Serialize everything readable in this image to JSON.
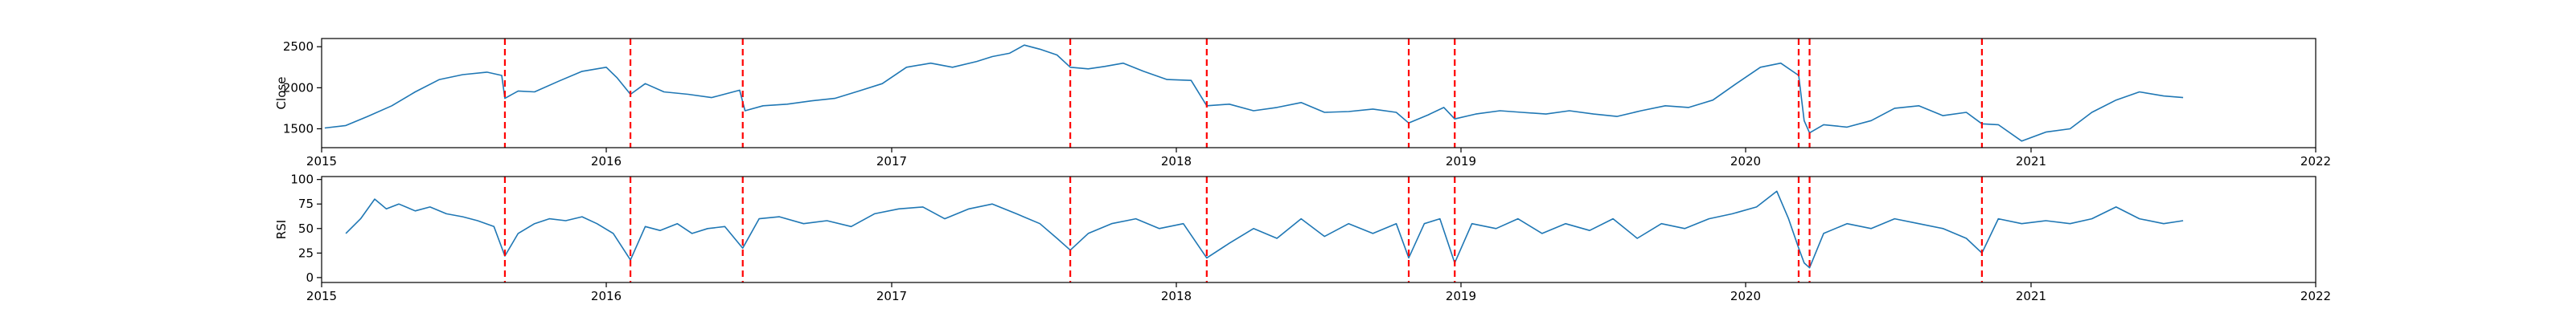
{
  "chart_data": [
    {
      "type": "line",
      "ylabel": "Close",
      "xlim": [
        "2015-01-01",
        "2022-01-01"
      ],
      "ylim": [
        1270,
        2600
      ],
      "xticks": [
        "2015",
        "2016",
        "2017",
        "2018",
        "2019",
        "2020",
        "2021",
        "2022"
      ],
      "yticks": [
        1500,
        2000,
        2500
      ],
      "series_color": "#1f77b4",
      "event_color": "#ff0000",
      "event_dates": [
        "2015-08-24",
        "2016-02-01",
        "2016-06-24",
        "2017-08-18",
        "2018-02-09",
        "2018-10-26",
        "2018-12-24",
        "2020-03-09",
        "2020-03-23",
        "2020-10-30"
      ],
      "series": [
        {
          "x": [
            "2015-01-05",
            "2015-02-01",
            "2015-03-01",
            "2015-04-01",
            "2015-05-01",
            "2015-06-01",
            "2015-07-01",
            "2015-08-01",
            "2015-08-20",
            "2015-08-24",
            "2015-09-10",
            "2015-10-01",
            "2015-11-01",
            "2015-12-01",
            "2016-01-01",
            "2016-01-15",
            "2016-02-01",
            "2016-02-20",
            "2016-03-15",
            "2016-04-15",
            "2016-05-15",
            "2016-06-20",
            "2016-06-27",
            "2016-07-20",
            "2016-08-20",
            "2016-09-20",
            "2016-10-20",
            "2016-11-20",
            "2016-12-20",
            "2017-01-20",
            "2017-02-20",
            "2017-03-20",
            "2017-04-20",
            "2017-05-10",
            "2017-06-01",
            "2017-06-20",
            "2017-07-10",
            "2017-08-01",
            "2017-08-18",
            "2017-09-10",
            "2017-10-01",
            "2017-10-25",
            "2017-11-20",
            "2017-12-20",
            "2018-01-20",
            "2018-02-09",
            "2018-03-10",
            "2018-04-10",
            "2018-05-10",
            "2018-06-10",
            "2018-07-10",
            "2018-08-10",
            "2018-09-10",
            "2018-10-10",
            "2018-10-26",
            "2018-11-20",
            "2018-12-10",
            "2018-12-24",
            "2019-01-20",
            "2019-02-20",
            "2019-03-20",
            "2019-04-20",
            "2019-05-20",
            "2019-06-20",
            "2019-07-20",
            "2019-08-20",
            "2019-09-20",
            "2019-10-20",
            "2019-11-20",
            "2019-12-20",
            "2020-01-20",
            "2020-02-15",
            "2020-03-09",
            "2020-03-16",
            "2020-03-23",
            "2020-04-10",
            "2020-05-10",
            "2020-06-10",
            "2020-07-10",
            "2020-08-10",
            "2020-09-10",
            "2020-10-10",
            "2020-10-30",
            "2020-11-20",
            "2020-12-20",
            "2021-01-20",
            "2021-02-20",
            "2021-03-20",
            "2021-04-20",
            "2021-05-20",
            "2021-06-20",
            "2021-07-15"
          ],
          "values": [
            1510,
            1540,
            1650,
            1780,
            1950,
            2100,
            2160,
            2190,
            2150,
            1870,
            1960,
            1950,
            2080,
            2200,
            2250,
            2120,
            1920,
            2050,
            1950,
            1920,
            1880,
            1970,
            1720,
            1780,
            1800,
            1840,
            1870,
            1960,
            2050,
            2250,
            2300,
            2250,
            2320,
            2380,
            2420,
            2520,
            2470,
            2400,
            2250,
            2230,
            2260,
            2300,
            2200,
            2100,
            2090,
            1780,
            1800,
            1720,
            1760,
            1820,
            1700,
            1710,
            1740,
            1700,
            1570,
            1670,
            1760,
            1620,
            1680,
            1720,
            1700,
            1680,
            1720,
            1680,
            1650,
            1720,
            1780,
            1760,
            1850,
            2050,
            2250,
            2300,
            2150,
            1600,
            1450,
            1550,
            1520,
            1600,
            1750,
            1780,
            1660,
            1700,
            1560,
            1550,
            1350,
            1460,
            1500,
            1700,
            1850,
            1950,
            1900,
            1880
          ]
        }
      ]
    },
    {
      "type": "line",
      "ylabel": "RSI",
      "xlim": [
        "2015-01-01",
        "2022-01-01"
      ],
      "ylim": [
        -5,
        103
      ],
      "xticks": [
        "2015",
        "2016",
        "2017",
        "2018",
        "2019",
        "2020",
        "2021",
        "2022"
      ],
      "yticks": [
        0,
        25,
        50,
        75,
        100
      ],
      "series_color": "#1f77b4",
      "event_color": "#ff0000",
      "event_dates": [
        "2015-08-24",
        "2016-02-01",
        "2016-06-24",
        "2017-08-18",
        "2018-02-09",
        "2018-10-26",
        "2018-12-24",
        "2020-03-09",
        "2020-03-23",
        "2020-10-30"
      ],
      "series": [
        {
          "x": [
            "2015-02-01",
            "2015-02-20",
            "2015-03-10",
            "2015-03-25",
            "2015-04-10",
            "2015-05-01",
            "2015-05-20",
            "2015-06-10",
            "2015-07-01",
            "2015-07-20",
            "2015-08-10",
            "2015-08-24",
            "2015-09-10",
            "2015-10-01",
            "2015-10-20",
            "2015-11-10",
            "2015-12-01",
            "2015-12-20",
            "2016-01-10",
            "2016-02-01",
            "2016-02-20",
            "2016-03-10",
            "2016-04-01",
            "2016-04-20",
            "2016-05-10",
            "2016-06-01",
            "2016-06-24",
            "2016-07-15",
            "2016-08-10",
            "2016-09-10",
            "2016-10-10",
            "2016-11-10",
            "2016-12-10",
            "2017-01-10",
            "2017-02-10",
            "2017-03-10",
            "2017-04-10",
            "2017-05-10",
            "2017-06-10",
            "2017-07-10",
            "2017-08-01",
            "2017-08-18",
            "2017-09-10",
            "2017-10-10",
            "2017-11-10",
            "2017-12-10",
            "2018-01-10",
            "2018-02-09",
            "2018-03-10",
            "2018-04-10",
            "2018-05-10",
            "2018-06-10",
            "2018-07-10",
            "2018-08-10",
            "2018-09-10",
            "2018-10-10",
            "2018-10-26",
            "2018-11-15",
            "2018-12-05",
            "2018-12-24",
            "2019-01-15",
            "2019-02-15",
            "2019-03-15",
            "2019-04-15",
            "2019-05-15",
            "2019-06-15",
            "2019-07-15",
            "2019-08-15",
            "2019-09-15",
            "2019-10-15",
            "2019-11-15",
            "2019-12-15",
            "2020-01-15",
            "2020-02-10",
            "2020-02-25",
            "2020-03-09",
            "2020-03-16",
            "2020-03-23",
            "2020-04-10",
            "2020-05-10",
            "2020-06-10",
            "2020-07-10",
            "2020-08-10",
            "2020-09-10",
            "2020-10-10",
            "2020-10-30",
            "2020-11-20",
            "2020-12-20",
            "2021-01-20",
            "2021-02-20",
            "2021-03-20",
            "2021-04-20",
            "2021-05-20",
            "2021-06-20",
            "2021-07-15"
          ],
          "values": [
            45,
            60,
            80,
            70,
            75,
            68,
            72,
            65,
            62,
            58,
            52,
            22,
            45,
            55,
            60,
            58,
            62,
            55,
            45,
            18,
            52,
            48,
            55,
            45,
            50,
            52,
            30,
            60,
            62,
            55,
            58,
            52,
            65,
            70,
            72,
            60,
            70,
            75,
            65,
            55,
            40,
            28,
            45,
            55,
            60,
            50,
            55,
            20,
            35,
            50,
            40,
            60,
            42,
            55,
            45,
            55,
            20,
            55,
            60,
            15,
            55,
            50,
            60,
            45,
            55,
            48,
            60,
            40,
            55,
            50,
            60,
            65,
            72,
            88,
            60,
            30,
            15,
            10,
            45,
            55,
            50,
            60,
            55,
            50,
            40,
            25,
            60,
            55,
            58,
            55,
            60,
            72,
            60,
            55,
            58
          ]
        }
      ]
    }
  ]
}
